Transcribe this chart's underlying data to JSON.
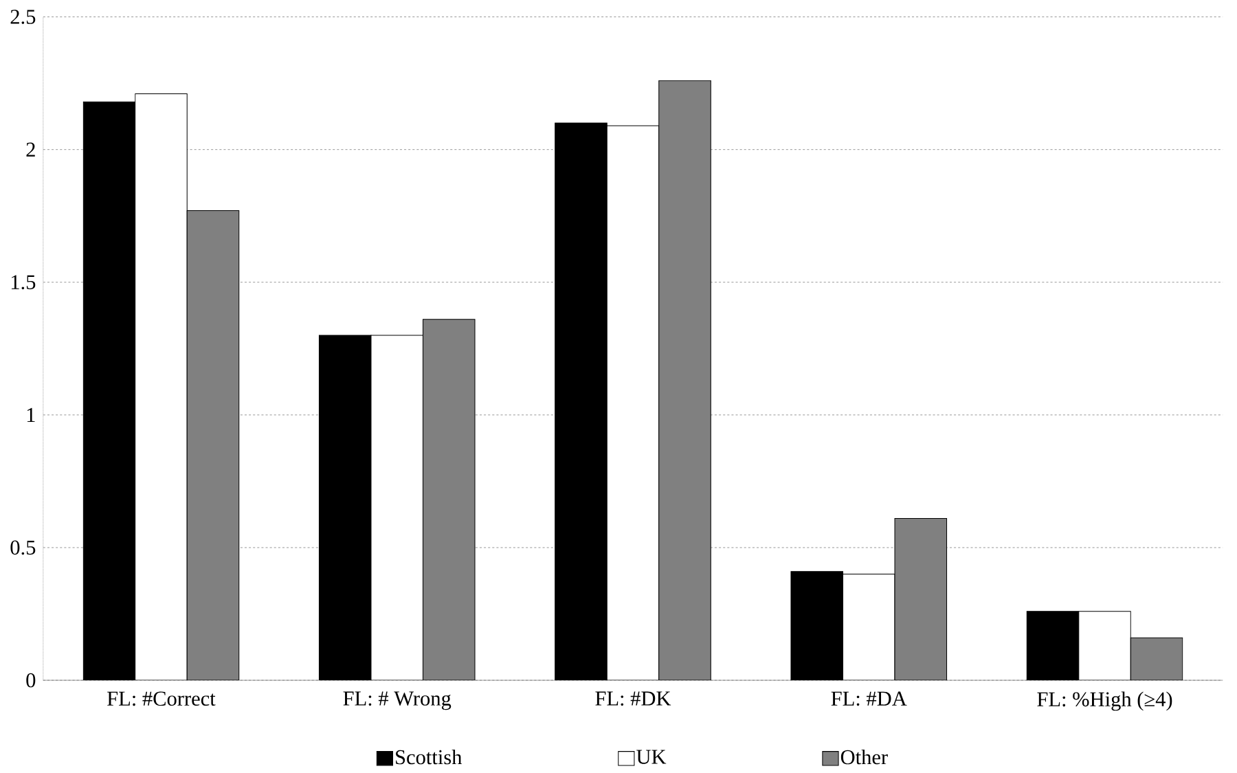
{
  "chart_data": {
    "type": "bar",
    "categories": [
      "FL: #Correct",
      "FL: # Wrong",
      "FL: #DK",
      "FL: #DA",
      "FL: %High (≥4)"
    ],
    "series": [
      {
        "name": "Scottish",
        "color": "#000000",
        "values": [
          2.18,
          1.3,
          2.1,
          0.41,
          0.26
        ]
      },
      {
        "name": "UK",
        "color": "#ffffff",
        "values": [
          2.21,
          1.3,
          2.09,
          0.4,
          0.26
        ]
      },
      {
        "name": "Other",
        "color": "#808080",
        "values": [
          1.77,
          1.36,
          2.26,
          0.61,
          0.16
        ]
      }
    ],
    "ylim": [
      0,
      2.5
    ],
    "yticks": [
      0,
      0.5,
      1,
      1.5,
      2,
      2.5
    ],
    "grid": "y",
    "legend": "bottom"
  }
}
